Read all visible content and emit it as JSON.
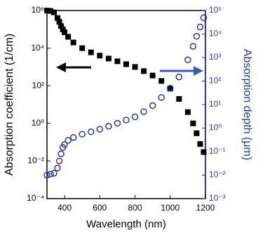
{
  "chart_data": {
    "type": "scatter",
    "xlabel": "Wavelength (nm)",
    "ylabel": "Absorption coefficient (1/cm)",
    "y2label": "Absorption depth (μm)",
    "x": [
      300,
      320,
      340,
      360,
      370,
      380,
      390,
      400,
      420,
      450,
      500,
      550,
      600,
      650,
      700,
      750,
      800,
      850,
      900,
      950,
      1000,
      1050,
      1100,
      1130,
      1150,
      1170,
      1190
    ],
    "series": [
      {
        "color": "#000000",
        "marker": "square",
        "values": [
          1000000,
          950000,
          800000,
          400000,
          250000,
          150000,
          100000,
          70000,
          40000,
          20000,
          10000,
          6000,
          4000,
          2800,
          2000,
          1400,
          1000,
          600,
          350,
          180,
          70,
          20,
          4,
          1,
          0.3,
          0.08,
          0.03
        ]
      },
      {
        "color": "#2b3a9a",
        "marker": "circle",
        "axis": "y2",
        "values": [
          0.01,
          0.011,
          0.012,
          0.02,
          0.04,
          0.08,
          0.15,
          0.2,
          0.3,
          0.4,
          0.55,
          0.7,
          0.9,
          1.2,
          1.6,
          2.2,
          3,
          5,
          9,
          20,
          50,
          150,
          800,
          3000,
          8000,
          20000,
          50000
        ]
      }
    ],
    "xlim": [
      300,
      1200
    ],
    "xticks": [
      400,
      600,
      800,
      1000,
      1200
    ],
    "ylog": true,
    "ylim": [
      0.0001,
      1000000
    ],
    "yticks": [
      {
        "value": 0.0001,
        "label": "10⁻⁴"
      },
      {
        "value": 0.01,
        "label": "10⁻²"
      },
      {
        "value": 1,
        "label": "10⁰"
      },
      {
        "value": 100,
        "label": "10²"
      },
      {
        "value": 10000,
        "label": "10⁴"
      },
      {
        "value": 1000000,
        "label": "10⁶"
      }
    ],
    "y2log": true,
    "y2lim": [
      0.001,
      100000
    ],
    "y2ticks": [
      {
        "value": 0.001,
        "label": "10⁻³"
      },
      {
        "value": 0.01,
        "label": "10⁻²"
      },
      {
        "value": 0.1,
        "label": "10⁻¹"
      },
      {
        "value": 1,
        "label": "10⁰"
      },
      {
        "value": 10,
        "label": "10¹"
      },
      {
        "value": 100,
        "label": "10²"
      },
      {
        "value": 1000,
        "label": "10³"
      },
      {
        "value": 10000,
        "label": "10⁴"
      },
      {
        "value": 100000,
        "label": "10⁵"
      }
    ]
  }
}
